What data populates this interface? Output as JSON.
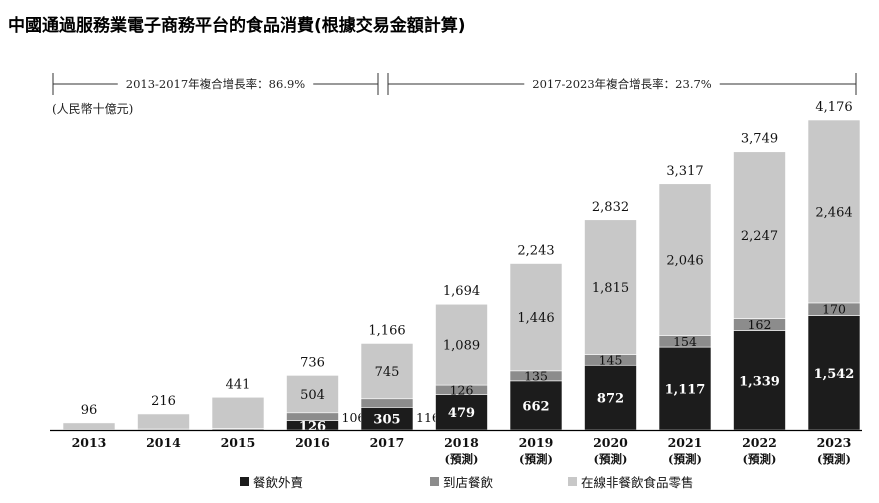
{
  "chart_data": {
    "type": "bar",
    "stacked": true,
    "title": "中國通過服務業電子商務平台的食品消費(根據交易金額計算)",
    "unit_note": "(人民幣十億元)",
    "categories": [
      "2013",
      "2014",
      "2015",
      "2016",
      "2017",
      "2018",
      "2019",
      "2020",
      "2021",
      "2022",
      "2023"
    ],
    "category_sublabels": [
      "",
      "",
      "",
      "",
      "",
      "(預測)",
      "(預測)",
      "(預測)",
      "(預測)",
      "(預測)",
      "(預測)"
    ],
    "series": [
      {
        "name": "餐飲外賣",
        "color": "#1c1c1c",
        "values": [
          2,
          7,
          14,
          126,
          305,
          479,
          662,
          872,
          1117,
          1339,
          1542
        ],
        "labels": [
          "",
          "",
          "",
          "126",
          "305",
          "479",
          "662",
          "872",
          "1,117",
          "1,339",
          "1,542"
        ]
      },
      {
        "name": "到店餐飲",
        "color": "#8c8c8c",
        "values": [
          2,
          6,
          7,
          106,
          116,
          126,
          135,
          145,
          154,
          162,
          170
        ],
        "labels": [
          "",
          "",
          "",
          "106",
          "116",
          "126",
          "135",
          "145",
          "154",
          "162",
          "170"
        ]
      },
      {
        "name": "在線非餐飲食品零售",
        "color": "#c8c8c8",
        "values": [
          92,
          203,
          420,
          504,
          745,
          1089,
          1446,
          1815,
          2046,
          2247,
          2464
        ],
        "labels": [
          "",
          "",
          "",
          "504",
          "745",
          "1,089",
          "1,446",
          "1,815",
          "2,046",
          "2,247",
          "2,464"
        ]
      }
    ],
    "totals": [
      96,
      216,
      441,
      736,
      1166,
      1694,
      2243,
      2832,
      3317,
      3749,
      4176
    ],
    "total_labels": [
      "96",
      "216",
      "441",
      "736",
      "1,166",
      "1,694",
      "2,243",
      "2,832",
      "3,317",
      "3,749",
      "4,176"
    ],
    "ylim": [
      0,
      4176
    ],
    "annotations": [
      {
        "text": "2013-2017年複合增長率：86.9%",
        "from": "2013",
        "to": "2017"
      },
      {
        "text": "2017-2023年複合增長率：23.7%",
        "from": "2017",
        "to": "2023"
      }
    ],
    "legend": [
      "餐飲外賣",
      "到店餐飲",
      "在線非餐飲食品零售"
    ],
    "legend_position": "bottom"
  }
}
